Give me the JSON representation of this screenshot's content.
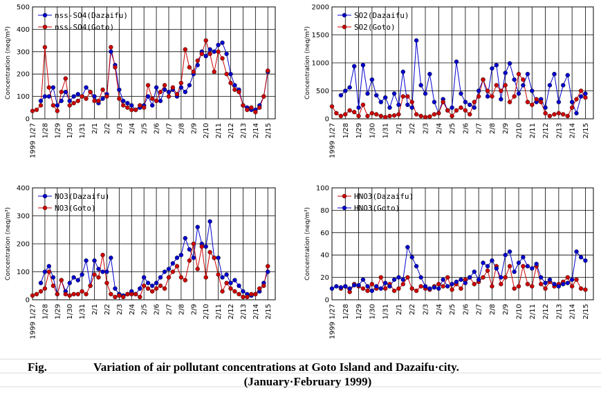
{
  "chart_data": [
    {
      "type": "line",
      "y_label": "Concentration (neq/m³)",
      "legend": "upper left",
      "grid": true,
      "xlim": [
        0,
        19.6
      ],
      "ylim": [
        0,
        500
      ],
      "yticks": [
        0,
        100,
        200,
        300,
        400,
        500
      ],
      "xticks": [
        {
          "value": 0,
          "label": "1999 1/27"
        },
        {
          "value": 1,
          "label": "1/28"
        },
        {
          "value": 2,
          "label": "1/29"
        },
        {
          "value": 3,
          "label": "1/30"
        },
        {
          "value": 4,
          "label": "1/31"
        },
        {
          "value": 5,
          "label": "2/1"
        },
        {
          "value": 6,
          "label": "2/2"
        },
        {
          "value": 7,
          "label": "2/3"
        },
        {
          "value": 8,
          "label": "2/4"
        },
        {
          "value": 9,
          "label": "2/5"
        },
        {
          "value": 10,
          "label": "2/6"
        },
        {
          "value": 11,
          "label": "2/7"
        },
        {
          "value": 12,
          "label": "2/8"
        },
        {
          "value": 13,
          "label": "2/9"
        },
        {
          "value": 14,
          "label": "2/10"
        },
        {
          "value": 15,
          "label": "2/11"
        },
        {
          "value": 16,
          "label": "2/12"
        },
        {
          "value": 17,
          "label": "2/13"
        },
        {
          "value": 18,
          "label": "2/14"
        },
        {
          "value": 19,
          "label": "2/15"
        }
      ],
      "x": [
        0,
        0.33,
        0.67,
        1,
        1.33,
        1.67,
        2,
        2.33,
        2.67,
        3,
        3.33,
        3.67,
        4,
        4.33,
        4.67,
        5,
        5.33,
        5.67,
        6,
        6.33,
        6.67,
        7,
        7.33,
        7.67,
        8,
        8.33,
        8.67,
        9,
        9.33,
        9.67,
        10,
        10.33,
        10.67,
        11,
        11.33,
        11.67,
        12,
        12.33,
        12.67,
        13,
        13.33,
        13.67,
        14,
        14.33,
        14.67,
        15,
        15.33,
        15.67,
        16,
        16.33,
        16.67,
        17,
        17.33,
        17.67,
        18,
        18.33,
        18.67,
        19
      ],
      "series": [
        {
          "name": "nss-SO4(Dazaifu)",
          "color": "#0000cc",
          "values": [
            null,
            null,
            80,
            100,
            100,
            140,
            60,
            80,
            120,
            80,
            100,
            110,
            100,
            140,
            120,
            100,
            70,
            90,
            110,
            300,
            240,
            130,
            80,
            70,
            60,
            40,
            50,
            60,
            100,
            60,
            140,
            80,
            130,
            120,
            130,
            100,
            140,
            120,
            150,
            200,
            240,
            300,
            280,
            310,
            300,
            330,
            340,
            290,
            200,
            150,
            130,
            60,
            50,
            40,
            40,
            60,
            100,
            210
          ]
        },
        {
          "name": "nss-SO4(Goto)",
          "color": "#cc0000",
          "values": [
            35,
            40,
            60,
            320,
            140,
            60,
            35,
            120,
            180,
            60,
            70,
            80,
            100,
            90,
            120,
            80,
            80,
            130,
            100,
            320,
            230,
            90,
            60,
            50,
            40,
            40,
            60,
            50,
            150,
            90,
            80,
            120,
            150,
            100,
            140,
            110,
            160,
            310,
            230,
            210,
            260,
            290,
            350,
            290,
            210,
            300,
            270,
            200,
            160,
            130,
            120,
            60,
            40,
            50,
            30,
            50,
            100,
            215
          ]
        }
      ]
    },
    {
      "type": "line",
      "y_label": "Concentration (neq/m³)",
      "legend": "upper left",
      "grid": true,
      "xlim": [
        0,
        19.6
      ],
      "ylim": [
        0,
        2000
      ],
      "yticks": [
        0,
        500,
        1000,
        1500,
        2000
      ],
      "xticks": [
        {
          "value": 0,
          "label": "1999 1/27"
        },
        {
          "value": 1,
          "label": "1/28"
        },
        {
          "value": 2,
          "label": "1/29"
        },
        {
          "value": 3,
          "label": "1/30"
        },
        {
          "value": 4,
          "label": "1/31"
        },
        {
          "value": 5,
          "label": "2/1"
        },
        {
          "value": 6,
          "label": "2/2"
        },
        {
          "value": 7,
          "label": "2/3"
        },
        {
          "value": 8,
          "label": "2/4"
        },
        {
          "value": 9,
          "label": "2/5"
        },
        {
          "value": 10,
          "label": "2/6"
        },
        {
          "value": 11,
          "label": "2/7"
        },
        {
          "value": 12,
          "label": "2/8"
        },
        {
          "value": 13,
          "label": "2/9"
        },
        {
          "value": 14,
          "label": "2/10"
        },
        {
          "value": 15,
          "label": "2/11"
        },
        {
          "value": 16,
          "label": "2/12"
        },
        {
          "value": 17,
          "label": "2/13"
        },
        {
          "value": 18,
          "label": "2/14"
        },
        {
          "value": 19,
          "label": "2/15"
        }
      ],
      "x": [
        0,
        0.33,
        0.67,
        1,
        1.33,
        1.67,
        2,
        2.33,
        2.67,
        3,
        3.33,
        3.67,
        4,
        4.33,
        4.67,
        5,
        5.33,
        5.67,
        6,
        6.33,
        6.67,
        7,
        7.33,
        7.67,
        8,
        8.33,
        8.67,
        9,
        9.33,
        9.67,
        10,
        10.33,
        10.67,
        11,
        11.33,
        11.67,
        12,
        12.33,
        12.67,
        13,
        13.33,
        13.67,
        14,
        14.33,
        14.67,
        15,
        15.33,
        15.67,
        16,
        16.33,
        16.67,
        17,
        17.33,
        17.67,
        18,
        18.33,
        18.67,
        19
      ],
      "series": [
        {
          "name": "SO2(Dazaifu)",
          "color": "#0000cc",
          "values": [
            null,
            null,
            420,
            500,
            560,
            940,
            200,
            960,
            450,
            700,
            420,
            300,
            380,
            200,
            450,
            250,
            840,
            250,
            200,
            1400,
            600,
            450,
            800,
            300,
            100,
            350,
            150,
            200,
            1020,
            450,
            300,
            250,
            200,
            500,
            700,
            400,
            900,
            960,
            350,
            820,
            990,
            700,
            450,
            600,
            800,
            500,
            300,
            350,
            200,
            600,
            800,
            300,
            600,
            780,
            300,
            100,
            400,
            450
          ]
        },
        {
          "name": "SO2(Goto)",
          "color": "#cc0000",
          "values": [
            220,
            100,
            50,
            80,
            150,
            120,
            50,
            250,
            50,
            100,
            80,
            50,
            30,
            50,
            60,
            80,
            400,
            400,
            300,
            80,
            50,
            30,
            40,
            80,
            100,
            300,
            150,
            50,
            150,
            200,
            150,
            80,
            300,
            400,
            700,
            500,
            400,
            600,
            500,
            600,
            300,
            400,
            800,
            700,
            300,
            250,
            350,
            300,
            100,
            50,
            80,
            100,
            80,
            50,
            200,
            350,
            500,
            380
          ]
        }
      ]
    },
    {
      "type": "line",
      "y_label": "Concentration (neq/m³)",
      "legend": "upper left",
      "grid": true,
      "xlim": [
        0,
        19.6
      ],
      "ylim": [
        0,
        400
      ],
      "yticks": [
        0,
        100,
        200,
        300,
        400
      ],
      "xticks": [
        {
          "value": 0,
          "label": "1999 1/27"
        },
        {
          "value": 1,
          "label": "1/28"
        },
        {
          "value": 2,
          "label": "1/29"
        },
        {
          "value": 3,
          "label": "1/30"
        },
        {
          "value": 4,
          "label": "1/31"
        },
        {
          "value": 5,
          "label": "2/1"
        },
        {
          "value": 6,
          "label": "2/2"
        },
        {
          "value": 7,
          "label": "2/3"
        },
        {
          "value": 8,
          "label": "2/4"
        },
        {
          "value": 9,
          "label": "2/5"
        },
        {
          "value": 10,
          "label": "2/6"
        },
        {
          "value": 11,
          "label": "2/7"
        },
        {
          "value": 12,
          "label": "2/8"
        },
        {
          "value": 13,
          "label": "2/9"
        },
        {
          "value": 14,
          "label": "2/10"
        },
        {
          "value": 15,
          "label": "2/11"
        },
        {
          "value": 16,
          "label": "2/12"
        },
        {
          "value": 17,
          "label": "2/13"
        },
        {
          "value": 18,
          "label": "2/14"
        },
        {
          "value": 19,
          "label": "2/15"
        }
      ],
      "x": [
        0,
        0.33,
        0.67,
        1,
        1.33,
        1.67,
        2,
        2.33,
        2.67,
        3,
        3.33,
        3.67,
        4,
        4.33,
        4.67,
        5,
        5.33,
        5.67,
        6,
        6.33,
        6.67,
        7,
        7.33,
        7.67,
        8,
        8.33,
        8.67,
        9,
        9.33,
        9.67,
        10,
        10.33,
        10.67,
        11,
        11.33,
        11.67,
        12,
        12.33,
        12.67,
        13,
        13.33,
        13.67,
        14,
        14.33,
        14.67,
        15,
        15.33,
        15.67,
        16,
        16.33,
        16.67,
        17,
        17.33,
        17.67,
        18,
        18.33,
        18.67,
        19
      ],
      "series": [
        {
          "name": "NO3(Dazaifu)",
          "color": "#0000cc",
          "values": [
            null,
            null,
            60,
            100,
            120,
            80,
            20,
            70,
            30,
            60,
            80,
            70,
            90,
            140,
            50,
            140,
            110,
            100,
            100,
            150,
            40,
            20,
            15,
            20,
            30,
            20,
            40,
            80,
            60,
            50,
            60,
            80,
            100,
            110,
            130,
            150,
            160,
            220,
            180,
            150,
            260,
            200,
            190,
            280,
            150,
            150,
            80,
            90,
            60,
            70,
            50,
            30,
            20,
            15,
            20,
            30,
            60,
            100
          ]
        },
        {
          "name": "NO3(Goto)",
          "color": "#cc0000",
          "values": [
            15,
            20,
            30,
            40,
            100,
            50,
            20,
            70,
            20,
            15,
            20,
            20,
            30,
            20,
            50,
            90,
            80,
            160,
            60,
            20,
            10,
            15,
            10,
            20,
            20,
            20,
            10,
            50,
            40,
            30,
            40,
            50,
            40,
            80,
            100,
            120,
            80,
            70,
            140,
            200,
            110,
            190,
            80,
            170,
            150,
            90,
            30,
            60,
            40,
            30,
            20,
            10,
            10,
            20,
            20,
            40,
            50,
            120
          ]
        }
      ]
    },
    {
      "type": "line",
      "y_label": "Concentration (neq/m³)",
      "legend": "upper left",
      "grid": true,
      "xlim": [
        0,
        19.6
      ],
      "ylim": [
        0,
        100
      ],
      "yticks": [
        0,
        20,
        40,
        60,
        80,
        100
      ],
      "xticks": [
        {
          "value": 0,
          "label": "1999 1/27"
        },
        {
          "value": 1,
          "label": "1/28"
        },
        {
          "value": 2,
          "label": "1/29"
        },
        {
          "value": 3,
          "label": "1/30"
        },
        {
          "value": 4,
          "label": "1/31"
        },
        {
          "value": 5,
          "label": "2/1"
        },
        {
          "value": 6,
          "label": "2/2"
        },
        {
          "value": 7,
          "label": "2/3"
        },
        {
          "value": 8,
          "label": "2/4"
        },
        {
          "value": 9,
          "label": "2/5"
        },
        {
          "value": 10,
          "label": "2/6"
        },
        {
          "value": 11,
          "label": "2/7"
        },
        {
          "value": 12,
          "label": "2/8"
        },
        {
          "value": 13,
          "label": "2/9"
        },
        {
          "value": 14,
          "label": "2/10"
        },
        {
          "value": 15,
          "label": "2/11"
        },
        {
          "value": 16,
          "label": "2/12"
        },
        {
          "value": 17,
          "label": "2/13"
        },
        {
          "value": 18,
          "label": "2/14"
        },
        {
          "value": 19,
          "label": "2/15"
        }
      ],
      "x": [
        0,
        0.33,
        0.67,
        1,
        1.33,
        1.67,
        2,
        2.33,
        2.67,
        3,
        3.33,
        3.67,
        4,
        4.33,
        4.67,
        5,
        5.33,
        5.67,
        6,
        6.33,
        6.67,
        7,
        7.33,
        7.67,
        8,
        8.33,
        8.67,
        9,
        9.33,
        9.67,
        10,
        10.33,
        10.67,
        11,
        11.33,
        11.67,
        12,
        12.33,
        12.67,
        13,
        13.33,
        13.67,
        14,
        14.33,
        14.67,
        15,
        15.33,
        15.67,
        16,
        16.33,
        16.67,
        17,
        17.33,
        17.67,
        18,
        18.33,
        18.67,
        19
      ],
      "series": [
        {
          "name": "HNO3(Dazaifu)",
          "color": "#cc0000",
          "values": [
            null,
            null,
            10,
            12,
            7,
            14,
            12,
            10,
            8,
            14,
            10,
            20,
            10,
            14,
            8,
            10,
            14,
            20,
            10,
            8,
            12,
            10,
            9,
            12,
            14,
            12,
            20,
            9,
            14,
            10,
            18,
            20,
            14,
            16,
            20,
            26,
            12,
            30,
            14,
            20,
            30,
            10,
            12,
            30,
            14,
            12,
            30,
            14,
            10,
            16,
            12,
            14,
            16,
            20,
            12,
            18,
            10,
            9
          ]
        },
        {
          "name": "HNO3(Goto)",
          "color": "#0000cc",
          "values": [
            10,
            12,
            11,
            12,
            10,
            13,
            13,
            18,
            12,
            8,
            12,
            10,
            15,
            12,
            18,
            20,
            18,
            47,
            38,
            30,
            20,
            12,
            10,
            11,
            10,
            18,
            12,
            14,
            16,
            18,
            15,
            20,
            25,
            18,
            33,
            30,
            35,
            28,
            20,
            40,
            43,
            25,
            33,
            38,
            30,
            28,
            32,
            20,
            15,
            18,
            14,
            12,
            14,
            15,
            18,
            43,
            38,
            35
          ]
        }
      ]
    }
  ],
  "caption": {
    "label": "Fig.",
    "text": "Variation of air pollutant concentrations at Goto Island and Dazaifu·city.",
    "subtext": "(January·February 1999)"
  }
}
